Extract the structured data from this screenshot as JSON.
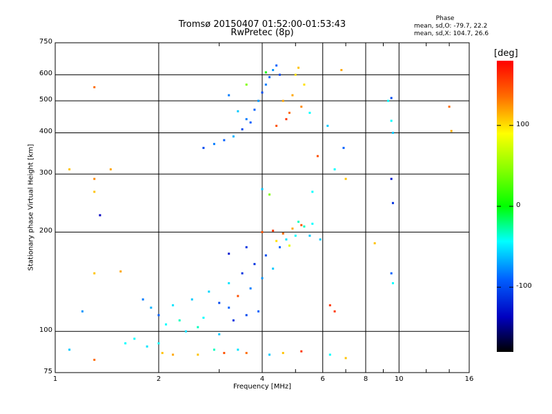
{
  "chart_data": {
    "type": "scatter",
    "title_line1": "Tromsø 20150407 01:52:00-01:53:43",
    "title_line2": "RwPretec (8p)",
    "phase_heading": "Phase",
    "phase_stats": [
      "mean, sd,O: -79.7, 22.2",
      "mean, sd,X: 104.7, 26.6"
    ],
    "xlabel": "Frequency [MHz]",
    "ylabel": "Stationary phase Virtual Height [km]",
    "x_scale": "log",
    "y_scale": "log",
    "xlim": [
      1,
      16
    ],
    "ylim": [
      75,
      750
    ],
    "x_ticks": [
      1,
      2,
      4,
      6,
      8,
      10,
      16
    ],
    "x_tick_labels": [
      "1",
      "2",
      "4",
      "6",
      "8",
      "10",
      "16"
    ],
    "y_ticks": [
      75,
      100,
      200,
      300,
      400,
      500,
      600,
      750
    ],
    "y_tick_labels": [
      "75",
      "100",
      "200",
      "300",
      "400",
      "500",
      "600",
      "750"
    ],
    "grid": true,
    "colorbar": {
      "label": "[deg]",
      "ticks": [
        100,
        0,
        -100
      ],
      "tick_labels": [
        "100",
        "0",
        "-100"
      ],
      "range": [
        -180,
        180
      ]
    },
    "series": [
      {
        "points": [
          [
            1.1,
            88,
            -60
          ],
          [
            1.3,
            82,
            140
          ],
          [
            1.3,
            550,
            140
          ],
          [
            1.35,
            225,
            -140
          ],
          [
            1.6,
            92,
            -40
          ],
          [
            1.7,
            95,
            -40
          ],
          [
            1.85,
            90,
            -50
          ],
          [
            2.0,
            92,
            -40
          ],
          [
            2.05,
            86,
            110
          ],
          [
            2.2,
            85,
            120
          ],
          [
            2.6,
            85,
            110
          ],
          [
            2.9,
            88,
            -30
          ],
          [
            3.1,
            86,
            150
          ],
          [
            3.4,
            88,
            -50
          ],
          [
            3.6,
            86,
            140
          ],
          [
            4.2,
            85,
            -60
          ],
          [
            4.6,
            86,
            110
          ],
          [
            5.2,
            87,
            160
          ],
          [
            6.3,
            85,
            -40
          ],
          [
            7.0,
            83,
            110
          ],
          [
            1.8,
            125,
            -90
          ],
          [
            1.9,
            118,
            -70
          ],
          [
            2.0,
            112,
            -100
          ],
          [
            2.1,
            105,
            -40
          ],
          [
            2.2,
            120,
            -50
          ],
          [
            2.3,
            108,
            -30
          ],
          [
            2.5,
            125,
            -60
          ],
          [
            2.7,
            110,
            -40
          ],
          [
            2.8,
            132,
            -55
          ],
          [
            3.0,
            122,
            -110
          ],
          [
            3.2,
            118,
            -100
          ],
          [
            3.2,
            140,
            -50
          ],
          [
            3.4,
            128,
            150
          ],
          [
            3.5,
            150,
            -120
          ],
          [
            3.7,
            135,
            -90
          ],
          [
            3.8,
            160,
            -120
          ],
          [
            4.0,
            145,
            -80
          ],
          [
            4.1,
            170,
            -110
          ],
          [
            4.3,
            155,
            -60
          ],
          [
            4.5,
            180,
            -100
          ],
          [
            4.7,
            190,
            -50
          ],
          [
            5.0,
            195,
            -40
          ],
          [
            5.3,
            208,
            -30
          ],
          [
            5.6,
            212,
            -40
          ],
          [
            3.2,
            172,
            -130
          ],
          [
            3.6,
            180,
            -120
          ],
          [
            4.0,
            200,
            150
          ],
          [
            4.3,
            202,
            160
          ],
          [
            4.6,
            198,
            140
          ],
          [
            4.9,
            205,
            120
          ],
          [
            5.2,
            210,
            150
          ],
          [
            4.4,
            188,
            100
          ],
          [
            4.8,
            182,
            80
          ],
          [
            3.3,
            108,
            -120
          ],
          [
            3.6,
            112,
            -110
          ],
          [
            3.9,
            115,
            -100
          ],
          [
            2.6,
            103,
            -30
          ],
          [
            2.4,
            100,
            -50
          ],
          [
            3.0,
            98,
            -60
          ],
          [
            5.1,
            215,
            -30
          ],
          [
            5.5,
            195,
            -60
          ],
          [
            4.0,
            270,
            -60
          ],
          [
            4.2,
            260,
            40
          ],
          [
            5.6,
            265,
            -40
          ],
          [
            6.3,
            120,
            160
          ],
          [
            6.5,
            115,
            160
          ],
          [
            9.5,
            150,
            -100
          ],
          [
            9.6,
            140,
            -40
          ],
          [
            8.5,
            185,
            110
          ],
          [
            5.9,
            190,
            -60
          ],
          [
            2.7,
            360,
            -110
          ],
          [
            2.9,
            370,
            -90
          ],
          [
            3.1,
            380,
            -100
          ],
          [
            3.3,
            390,
            -70
          ],
          [
            3.5,
            410,
            -110
          ],
          [
            3.6,
            440,
            -90
          ],
          [
            3.8,
            470,
            -100
          ],
          [
            3.9,
            500,
            -80
          ],
          [
            4.0,
            530,
            -110
          ],
          [
            4.1,
            560,
            -90
          ],
          [
            4.2,
            590,
            -100
          ],
          [
            4.3,
            620,
            -80
          ],
          [
            4.4,
            640,
            -100
          ],
          [
            4.5,
            600,
            -110
          ],
          [
            4.6,
            500,
            120
          ],
          [
            4.7,
            440,
            160
          ],
          [
            4.8,
            460,
            140
          ],
          [
            4.9,
            520,
            120
          ],
          [
            5.0,
            600,
            100
          ],
          [
            5.1,
            630,
            110
          ],
          [
            5.3,
            560,
            100
          ],
          [
            5.2,
            480,
            130
          ],
          [
            5.5,
            460,
            -40
          ],
          [
            4.4,
            420,
            150
          ],
          [
            3.7,
            430,
            -100
          ],
          [
            3.4,
            465,
            -60
          ],
          [
            3.2,
            520,
            -90
          ],
          [
            3.6,
            560,
            40
          ],
          [
            4.1,
            610,
            0
          ],
          [
            6.2,
            420,
            -60
          ],
          [
            6.5,
            310,
            -40
          ],
          [
            6.9,
            360,
            -100
          ],
          [
            6.8,
            620,
            120
          ],
          [
            5.8,
            340,
            150
          ],
          [
            9.5,
            510,
            -110
          ],
          [
            9.6,
            400,
            -60
          ],
          [
            9.5,
            435,
            -40
          ],
          [
            9.5,
            290,
            -130
          ],
          [
            9.6,
            245,
            -120
          ],
          [
            14.0,
            480,
            140
          ],
          [
            14.2,
            405,
            120
          ],
          [
            1.1,
            310,
            110
          ],
          [
            1.3,
            290,
            130
          ],
          [
            1.45,
            310,
            120
          ],
          [
            1.3,
            265,
            110
          ],
          [
            1.55,
            152,
            120
          ],
          [
            1.3,
            150,
            110
          ],
          [
            1.2,
            115,
            -80
          ],
          [
            9.3,
            500,
            -40
          ],
          [
            7.0,
            290,
            110
          ]
        ]
      }
    ]
  }
}
